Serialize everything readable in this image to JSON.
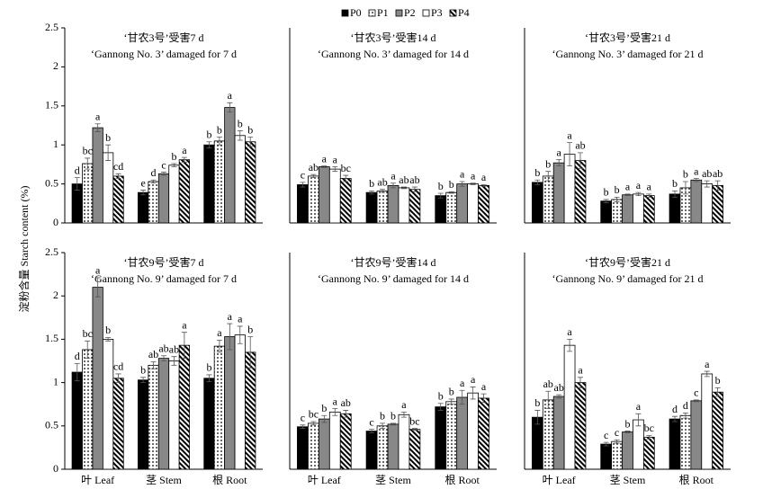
{
  "ylabel": "淀粉含量 Starch content (%)",
  "legend": [
    {
      "name": "P0",
      "fill": "black"
    },
    {
      "name": "P1",
      "fill": "dots"
    },
    {
      "name": "P2",
      "fill": "gray"
    },
    {
      "name": "P3",
      "fill": "white"
    },
    {
      "name": "P4",
      "fill": "hatch"
    }
  ],
  "chart_data": [
    {
      "type": "bar",
      "title": "‘甘农3号’受害7 d",
      "subtitle": "‘Gannong No. 3’ damaged for 7 d",
      "ylim": [
        0,
        2.5
      ],
      "yticks": [
        0,
        0.5,
        1,
        1.5,
        2,
        2.5
      ],
      "series": [
        {
          "values": [
            0.5,
            0.39,
            1.0
          ],
          "errors": [
            0.08,
            0.03,
            0.04
          ],
          "letters": [
            "d",
            "e",
            "b"
          ]
        },
        {
          "values": [
            0.76,
            0.53,
            1.05
          ],
          "errors": [
            0.07,
            0.02,
            0.05
          ],
          "letters": [
            "bc",
            "d",
            "b"
          ]
        },
        {
          "values": [
            1.22,
            0.63,
            1.48
          ],
          "errors": [
            0.05,
            0.02,
            0.06
          ],
          "letters": [
            "a",
            "c",
            "a"
          ]
        },
        {
          "values": [
            0.9,
            0.74,
            1.12
          ],
          "errors": [
            0.1,
            0.02,
            0.06
          ],
          "letters": [
            "b",
            "b",
            "b"
          ]
        },
        {
          "values": [
            0.6,
            0.81,
            1.04
          ],
          "errors": [
            0.03,
            0.03,
            0.06
          ],
          "letters": [
            "cd",
            "a",
            "b"
          ]
        }
      ]
    },
    {
      "type": "bar",
      "title": "‘甘农3号’受害14 d",
      "subtitle": "‘Gannong No. 3’ damaged for 14 d",
      "ylim": [
        0,
        2.5
      ],
      "series": [
        {
          "values": [
            0.49,
            0.39,
            0.35
          ],
          "errors": [
            0.03,
            0.02,
            0.03
          ],
          "letters": [
            "c",
            "b",
            "b"
          ]
        },
        {
          "values": [
            0.6,
            0.41,
            0.39
          ],
          "errors": [
            0.02,
            0.02,
            0.01
          ],
          "letters": [
            "ab",
            "ab",
            "b"
          ]
        },
        {
          "values": [
            0.72,
            0.48,
            0.5
          ],
          "errors": [
            0.01,
            0.03,
            0.03
          ],
          "letters": [
            "a",
            "a",
            "a"
          ]
        },
        {
          "values": [
            0.69,
            0.45,
            0.5
          ],
          "errors": [
            0.03,
            0.01,
            0.01
          ],
          "letters": [
            "a",
            "ab",
            "a"
          ]
        },
        {
          "values": [
            0.57,
            0.43,
            0.48
          ],
          "errors": [
            0.04,
            0.03,
            0.01
          ],
          "letters": [
            "bc",
            "ab",
            "a"
          ]
        }
      ]
    },
    {
      "type": "bar",
      "title": "‘甘农3号’受害21 d",
      "subtitle": "‘Gannong No. 3’ damaged for 21 d",
      "ylim": [
        0,
        2.5
      ],
      "series": [
        {
          "values": [
            0.52,
            0.28,
            0.37
          ],
          "errors": [
            0.03,
            0.02,
            0.04
          ],
          "letters": [
            "b",
            "b",
            "b"
          ]
        },
        {
          "values": [
            0.6,
            0.3,
            0.45
          ],
          "errors": [
            0.06,
            0.03,
            0.08
          ],
          "letters": [
            "b",
            "b",
            "b"
          ]
        },
        {
          "values": [
            0.77,
            0.36,
            0.55
          ],
          "errors": [
            0.04,
            0.01,
            0.02
          ],
          "letters": [
            "a",
            "a",
            "a"
          ]
        },
        {
          "values": [
            0.88,
            0.37,
            0.5
          ],
          "errors": [
            0.15,
            0.02,
            0.04
          ],
          "letters": [
            "a",
            "a",
            "ab"
          ]
        },
        {
          "values": [
            0.8,
            0.35,
            0.48
          ],
          "errors": [
            0.1,
            0.02,
            0.06
          ],
          "letters": [
            "ab",
            "a",
            "ab"
          ]
        }
      ]
    },
    {
      "type": "bar",
      "title": "‘甘农9号’受害7 d",
      "subtitle": "‘Gannong No. 9’ damaged for 7 d",
      "categories": [
        "叶 Leaf",
        "茎 Stem",
        "根 Root"
      ],
      "ylim": [
        0,
        2.5
      ],
      "yticks": [
        0,
        0.5,
        1,
        1.5,
        2,
        2.5
      ],
      "series": [
        {
          "values": [
            1.12,
            1.03,
            1.05
          ],
          "errors": [
            0.1,
            0.03,
            0.04
          ],
          "letters": [
            "d",
            "b",
            "b"
          ]
        },
        {
          "values": [
            1.38,
            1.2,
            1.42
          ],
          "errors": [
            0.1,
            0.04,
            0.07
          ],
          "letters": [
            "bc",
            "ab",
            "a"
          ]
        },
        {
          "values": [
            2.1,
            1.28,
            1.53
          ],
          "errors": [
            0.11,
            0.03,
            0.15
          ],
          "letters": [
            "a",
            "ab",
            "a"
          ]
        },
        {
          "values": [
            1.5,
            1.25,
            1.55
          ],
          "errors": [
            0.02,
            0.05,
            0.1
          ],
          "letters": [
            "b",
            "ab",
            "a"
          ]
        },
        {
          "values": [
            1.05,
            1.43,
            1.35
          ],
          "errors": [
            0.05,
            0.15,
            0.18
          ],
          "letters": [
            "cd",
            "a",
            "b"
          ]
        }
      ]
    },
    {
      "type": "bar",
      "title": "‘甘农9号’受害14 d",
      "subtitle": "‘Gannong No. 9’ damaged for 14 d",
      "categories": [
        "叶 Leaf",
        "茎 Stem",
        "根 Root"
      ],
      "ylim": [
        0,
        2.5
      ],
      "series": [
        {
          "values": [
            0.49,
            0.44,
            0.72
          ],
          "errors": [
            0.02,
            0.02,
            0.04
          ],
          "letters": [
            "c",
            "c",
            "b"
          ]
        },
        {
          "values": [
            0.53,
            0.5,
            0.78
          ],
          "errors": [
            0.02,
            0.03,
            0.03
          ],
          "letters": [
            "bc",
            "b",
            "b"
          ]
        },
        {
          "values": [
            0.58,
            0.52,
            0.83
          ],
          "errors": [
            0.04,
            0.01,
            0.08
          ],
          "letters": [
            "b",
            "b",
            "a"
          ]
        },
        {
          "values": [
            0.66,
            0.63,
            0.88
          ],
          "errors": [
            0.04,
            0.03,
            0.07
          ],
          "letters": [
            "a",
            "a",
            "a"
          ]
        },
        {
          "values": [
            0.64,
            0.46,
            0.82
          ],
          "errors": [
            0.04,
            0.01,
            0.05
          ],
          "letters": [
            "ab",
            "bc",
            "a"
          ]
        }
      ]
    },
    {
      "type": "bar",
      "title": "‘甘农9号’受害21 d",
      "subtitle": "‘Gannong No. 9’ damaged for 21 d",
      "categories": [
        "叶 Leaf",
        "茎 Stem",
        "根 Root"
      ],
      "ylim": [
        0,
        2.5
      ],
      "series": [
        {
          "values": [
            0.6,
            0.29,
            0.58
          ],
          "errors": [
            0.08,
            0.02,
            0.03
          ],
          "letters": [
            "b",
            "c",
            "d"
          ]
        },
        {
          "values": [
            0.8,
            0.32,
            0.62
          ],
          "errors": [
            0.1,
            0.02,
            0.03
          ],
          "letters": [
            "ab",
            "c",
            "d"
          ]
        },
        {
          "values": [
            0.84,
            0.43,
            0.79
          ],
          "errors": [
            0.02,
            0.01,
            0.01
          ],
          "letters": [
            "ab",
            "b",
            "c"
          ]
        },
        {
          "values": [
            1.43,
            0.57,
            1.1
          ],
          "errors": [
            0.07,
            0.07,
            0.03
          ],
          "letters": [
            "a",
            "a",
            "a"
          ]
        },
        {
          "values": [
            1.0,
            0.37,
            0.89
          ],
          "errors": [
            0.06,
            0.02,
            0.05
          ],
          "letters": [
            "a",
            "bc",
            "b"
          ]
        }
      ]
    }
  ]
}
